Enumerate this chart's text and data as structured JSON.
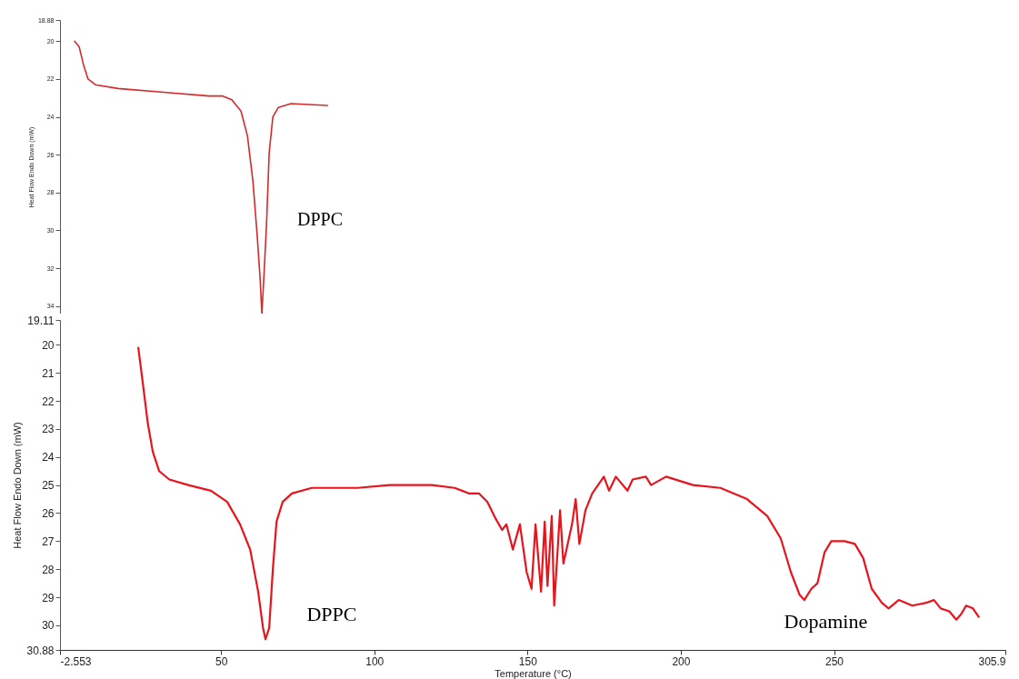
{
  "chart_data": [
    {
      "type": "line",
      "ylabel": "Heat Flow Endo Down (mW)",
      "xlim": [
        -2.553,
        305.9
      ],
      "ylim": [
        34.4,
        18.88
      ],
      "yticks": [
        18.88,
        20,
        22,
        24,
        26,
        28,
        30,
        32,
        34
      ],
      "tick_labels": "y",
      "series": [
        {
          "color": "#d42a2a",
          "x": [
            2.2,
            3.7,
            5.2,
            6.6,
            9.0,
            16.4,
            31.3,
            46.1,
            50.6,
            53.5,
            56.5,
            58.6,
            60.4,
            61.8,
            62.8,
            63.3,
            63.9,
            64.8,
            65.7,
            66.9,
            68.7,
            72.8,
            84.7
          ],
          "values": [
            20.0,
            20.3,
            21.3,
            22.0,
            22.3,
            22.5,
            22.7,
            22.9,
            22.9,
            23.1,
            23.7,
            25.0,
            27.4,
            30.3,
            32.7,
            34.4,
            32.7,
            29.8,
            25.9,
            24.0,
            23.5,
            23.3,
            23.4
          ]
        }
      ],
      "annotations": [
        "DPPC"
      ]
    },
    {
      "type": "line",
      "xlabel": "Temperature (°C)",
      "ylabel": "Heat Flow Endo Down (mW)",
      "xlim": [
        -2.553,
        305.9
      ],
      "xticks": [
        -2.553,
        50,
        100,
        150,
        200,
        250,
        305.9
      ],
      "ylim": [
        30.88,
        19.11
      ],
      "yticks": [
        19.11,
        20,
        21,
        22,
        23,
        24,
        25,
        26,
        27,
        28,
        29,
        30,
        30.88
      ],
      "series": [
        {
          "color": "#e8141c",
          "x": [
            23.0,
            24.4,
            26.1,
            27.7,
            29.8,
            33.1,
            39.3,
            46.7,
            52.0,
            56.2,
            59.5,
            62.1,
            63.7,
            64.5,
            65.7,
            66.9,
            68.1,
            70.1,
            73.1,
            79.6,
            94.5,
            105.0,
            118.8,
            126.2,
            131.0,
            134.2,
            136.9,
            139.6,
            141.7,
            143.1,
            145.2,
            147.5,
            149.7,
            151.3,
            152.6,
            154.4,
            155.6,
            156.5,
            157.9,
            158.7,
            160.6,
            161.7,
            164.5,
            165.7,
            166.9,
            168.9,
            171.1,
            174.9,
            176.6,
            178.8,
            182.6,
            184.3,
            188.6,
            190.3,
            195.2,
            204.0,
            212.9,
            221.6,
            228.2,
            232.6,
            235.9,
            238.7,
            240.3,
            242.6,
            244.6,
            246.9,
            249.1,
            253.5,
            256.8,
            259.5,
            262.3,
            265.6,
            267.8,
            271.1,
            275.5,
            280.0,
            282.6,
            284.8,
            287.6,
            289.9,
            291.5,
            293.1,
            295.3,
            297.2
          ],
          "values": [
            20.1,
            21.3,
            22.8,
            23.8,
            24.5,
            24.8,
            25.0,
            25.2,
            25.6,
            26.4,
            27.3,
            28.8,
            30.1,
            30.5,
            30.1,
            28.0,
            26.3,
            25.6,
            25.3,
            25.1,
            25.1,
            25.0,
            25.0,
            25.1,
            25.3,
            25.3,
            25.6,
            26.2,
            26.6,
            26.4,
            27.3,
            26.4,
            28.1,
            28.7,
            26.4,
            28.8,
            26.3,
            28.6,
            26.1,
            29.3,
            25.9,
            27.8,
            26.4,
            25.5,
            27.1,
            25.9,
            25.3,
            24.7,
            25.2,
            24.7,
            25.2,
            24.8,
            24.7,
            25.0,
            24.7,
            25.0,
            25.1,
            25.5,
            26.1,
            26.9,
            28.1,
            28.9,
            29.1,
            28.7,
            28.5,
            27.4,
            27.0,
            27.0,
            27.1,
            27.6,
            28.7,
            29.2,
            29.4,
            29.1,
            29.3,
            29.2,
            29.1,
            29.4,
            29.5,
            29.8,
            29.6,
            29.3,
            29.4,
            29.7
          ]
        }
      ],
      "annotations": [
        "DPPC",
        "Dopamine"
      ]
    }
  ]
}
